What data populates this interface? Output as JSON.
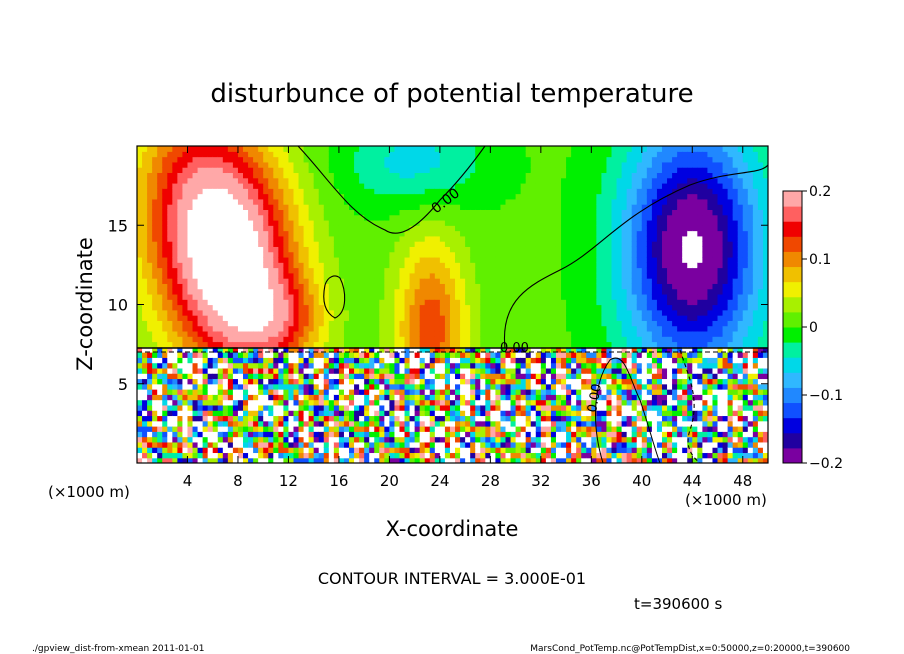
{
  "chart_data": {
    "type": "heatmap",
    "title": "disturbunce of potential temperature",
    "xlabel": "X-coordinate",
    "ylabel": "Z-coordinate",
    "x_unit_left": "(×1000 m)",
    "x_unit_right": "(×1000 m)",
    "xlim": [
      0,
      50
    ],
    "ylim": [
      0,
      20
    ],
    "x_ticks": [
      4,
      8,
      12,
      16,
      20,
      24,
      28,
      32,
      36,
      40,
      44,
      48
    ],
    "y_ticks": [
      5,
      10,
      15
    ],
    "colorbar": {
      "range": [
        -0.2,
        0.2
      ],
      "tick_values": [
        0.2,
        0.1,
        0,
        -0.1,
        -0.2
      ],
      "tick_labels": [
        "0.2",
        "0.1",
        "0",
        "−0.1",
        "−0.2"
      ]
    },
    "contour_labels": [
      "0.00",
      "0.00",
      "0.00"
    ],
    "warm_anomalies": [
      {
        "x": 8,
        "z": 12,
        "sx": 3.4,
        "sz": 4.8,
        "value": 0.2
      },
      {
        "x": 4.5,
        "z": 16.5,
        "sx": 3.5,
        "sz": 5.0,
        "value": 0.13
      },
      {
        "x": 11.5,
        "z": 9.0,
        "sx": 2.5,
        "sz": 2.0,
        "value": 0.08
      },
      {
        "x": 23.3,
        "z": 8.5,
        "sx": 2.0,
        "sz": 4.0,
        "value": 0.12
      }
    ],
    "cold_anomalies": [
      {
        "x": 44,
        "z": 13.5,
        "sx": 3.8,
        "sz": 5.5,
        "value": -0.22
      },
      {
        "x": 22,
        "z": 19,
        "sx": 4.0,
        "sz": 2.0,
        "value": -0.06
      }
    ]
  },
  "annotations": {
    "contour_interval": "CONTOUR INTERVAL = 3.000E-01",
    "time": "t=390600 s",
    "footer_left": "./gpview_dist-from-xmean  2011-01-01",
    "footer_right": "MarsCond_PotTemp.nc@PotTempDist,x=0:50000,z=0:20000,t=390600"
  },
  "colors": {
    "palette": [
      "#7a00a0",
      "#2000a0",
      "#0000e0",
      "#1050ff",
      "#2088ff",
      "#30b8ff",
      "#00d8e8",
      "#00f0a0",
      "#00f000",
      "#60f000",
      "#a8f000",
      "#f0f000",
      "#f0c000",
      "#f08800",
      "#f04800",
      "#f00000",
      "#ff6060",
      "#ffa8a8"
    ]
  }
}
